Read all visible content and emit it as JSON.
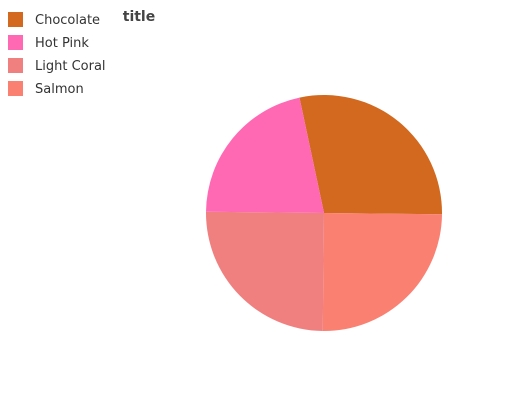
{
  "chart_data": {
    "type": "pie",
    "title": "title",
    "categories": [
      "Chocolate",
      "Hot Pink",
      "Light Coral",
      "Salmon"
    ],
    "values": [
      28.5,
      21.5,
      25,
      25
    ],
    "colors": [
      "#D2691E",
      "#FF69B4",
      "#F08080",
      "#FA8072"
    ],
    "legend_position": "top-left"
  }
}
